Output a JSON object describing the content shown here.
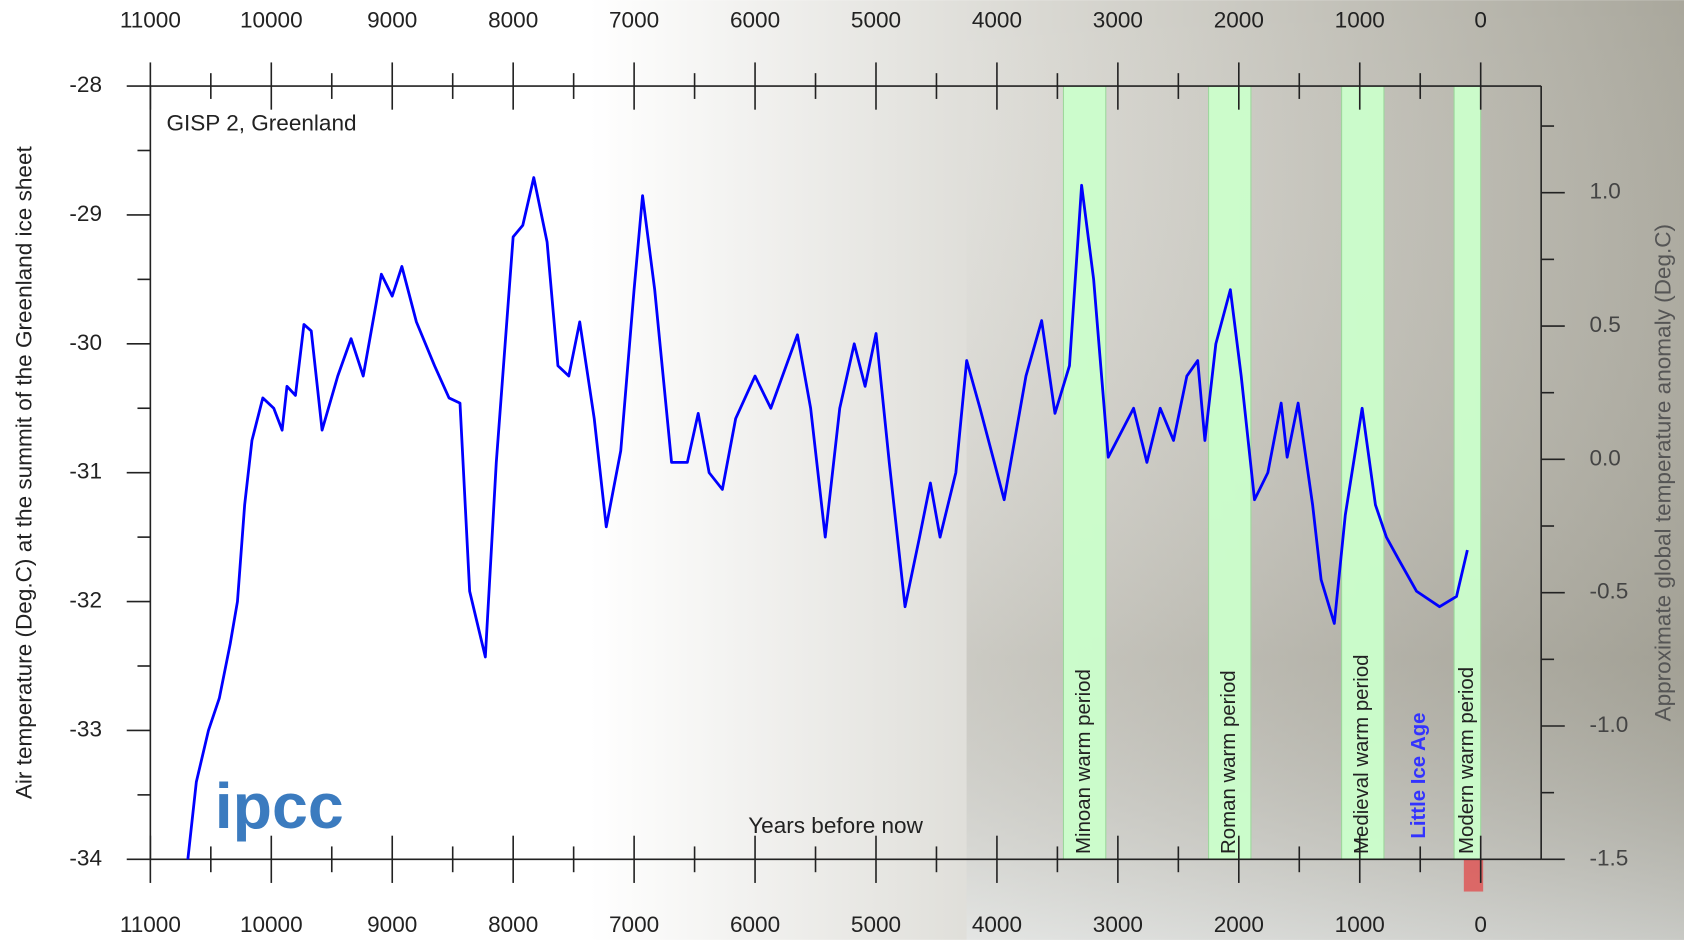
{
  "chart_data": {
    "type": "line",
    "subtitle": "GISP 2, Greenland",
    "x_label": "Years before now",
    "y_label": "Air temperature (Deg.C) at the summit of the Greenland ice sheet",
    "y2_label": "Approximate global temperature anomaly (Deg.C)",
    "logo": "ipcc",
    "annotation": "Little Ice Age",
    "xlim": [
      11000,
      -500
    ],
    "xticks": [
      11000,
      10000,
      9000,
      8000,
      7000,
      6000,
      5000,
      4000,
      3000,
      2000,
      1000,
      0
    ],
    "xminor": [
      10500,
      9500,
      8500,
      7500,
      6500,
      5500,
      4500,
      3500,
      2500,
      1500,
      500
    ],
    "ylim": [
      -34,
      -28
    ],
    "yticks": [
      -34,
      -33,
      -32,
      -31,
      -30,
      -29,
      -28
    ],
    "yminor": [
      -33.5,
      -32.5,
      -31.5,
      -30.5,
      -29.5,
      -28.5
    ],
    "y2lim": [
      -1.5,
      1.4
    ],
    "y2ticks": [
      -1.5,
      {
        "value": -1.0,
        "label": "-1.0"
      },
      -0.5,
      {
        "value": 0.0,
        "label": "0.0"
      },
      0.5,
      {
        "value": 1.0,
        "label": "1.0"
      }
    ],
    "y2minor": [
      -1.25,
      -0.75,
      -0.25,
      0.25,
      0.75,
      1.25
    ],
    "periods": [
      {
        "label": "Minoan warm period",
        "start": 3450,
        "end": 3100
      },
      {
        "label": "Roman warm period",
        "start": 2250,
        "end": 1900
      },
      {
        "label": "Medieval warm period",
        "start": 1150,
        "end": 800
      },
      {
        "label": "Modern warm period",
        "start": 220,
        "end": 0
      }
    ],
    "series": [
      {
        "name": "GISP 2",
        "color": "#0000ff",
        "x": [
          10690,
          10620,
          10520,
          10430,
          10340,
          10280,
          10220,
          10160,
          10070,
          9980,
          9910,
          9870,
          9800,
          9730,
          9670,
          9580,
          9450,
          9340,
          9240,
          9090,
          9000,
          8920,
          8800,
          8650,
          8530,
          8440,
          8360,
          8230,
          8140,
          8000,
          7920,
          7830,
          7720,
          7630,
          7540,
          7450,
          7330,
          7230,
          7110,
          7000,
          6930,
          6830,
          6690,
          6560,
          6470,
          6380,
          6270,
          6160,
          6000,
          5870,
          5650,
          5540,
          5420,
          5300,
          5180,
          5090,
          5000,
          4890,
          4760,
          4640,
          4550,
          4470,
          4340,
          4250,
          4140,
          3940,
          3760,
          3630,
          3520,
          3400,
          3300,
          3200,
          3080,
          2870,
          2760,
          2650,
          2540,
          2430,
          2340,
          2280,
          2190,
          2070,
          1980,
          1870,
          1760,
          1650,
          1600,
          1510,
          1390,
          1320,
          1210,
          1120,
          980,
          870,
          780,
          680,
          530,
          340,
          200,
          110
        ],
        "values": [
          -34.0,
          -33.4,
          -33.0,
          -32.75,
          -32.33,
          -32.0,
          -31.25,
          -30.75,
          -30.42,
          -30.5,
          -30.67,
          -30.33,
          -30.4,
          -29.85,
          -29.9,
          -30.67,
          -30.25,
          -29.96,
          -30.25,
          -29.46,
          -29.63,
          -29.4,
          -29.83,
          -30.17,
          -30.42,
          -30.46,
          -31.92,
          -32.43,
          -30.92,
          -29.17,
          -29.08,
          -28.71,
          -29.21,
          -30.17,
          -30.25,
          -29.83,
          -30.58,
          -31.42,
          -30.83,
          -29.58,
          -28.85,
          -29.58,
          -30.92,
          -30.92,
          -30.54,
          -31.0,
          -31.13,
          -30.58,
          -30.25,
          -30.5,
          -29.93,
          -30.5,
          -31.5,
          -30.5,
          -30.0,
          -30.33,
          -29.92,
          -30.92,
          -32.04,
          -31.5,
          -31.08,
          -31.5,
          -31.0,
          -30.13,
          -30.5,
          -31.21,
          -30.25,
          -29.82,
          -30.54,
          -30.17,
          -28.77,
          -29.5,
          -30.88,
          -30.5,
          -30.92,
          -30.5,
          -30.75,
          -30.25,
          -30.13,
          -30.75,
          -30.0,
          -29.58,
          -30.25,
          -31.21,
          -31.0,
          -30.46,
          -30.88,
          -30.46,
          -31.25,
          -31.83,
          -32.17,
          -31.33,
          -30.5,
          -31.25,
          -31.5,
          -31.67,
          -31.92,
          -32.04,
          -31.96,
          -31.6
        ]
      }
    ]
  }
}
